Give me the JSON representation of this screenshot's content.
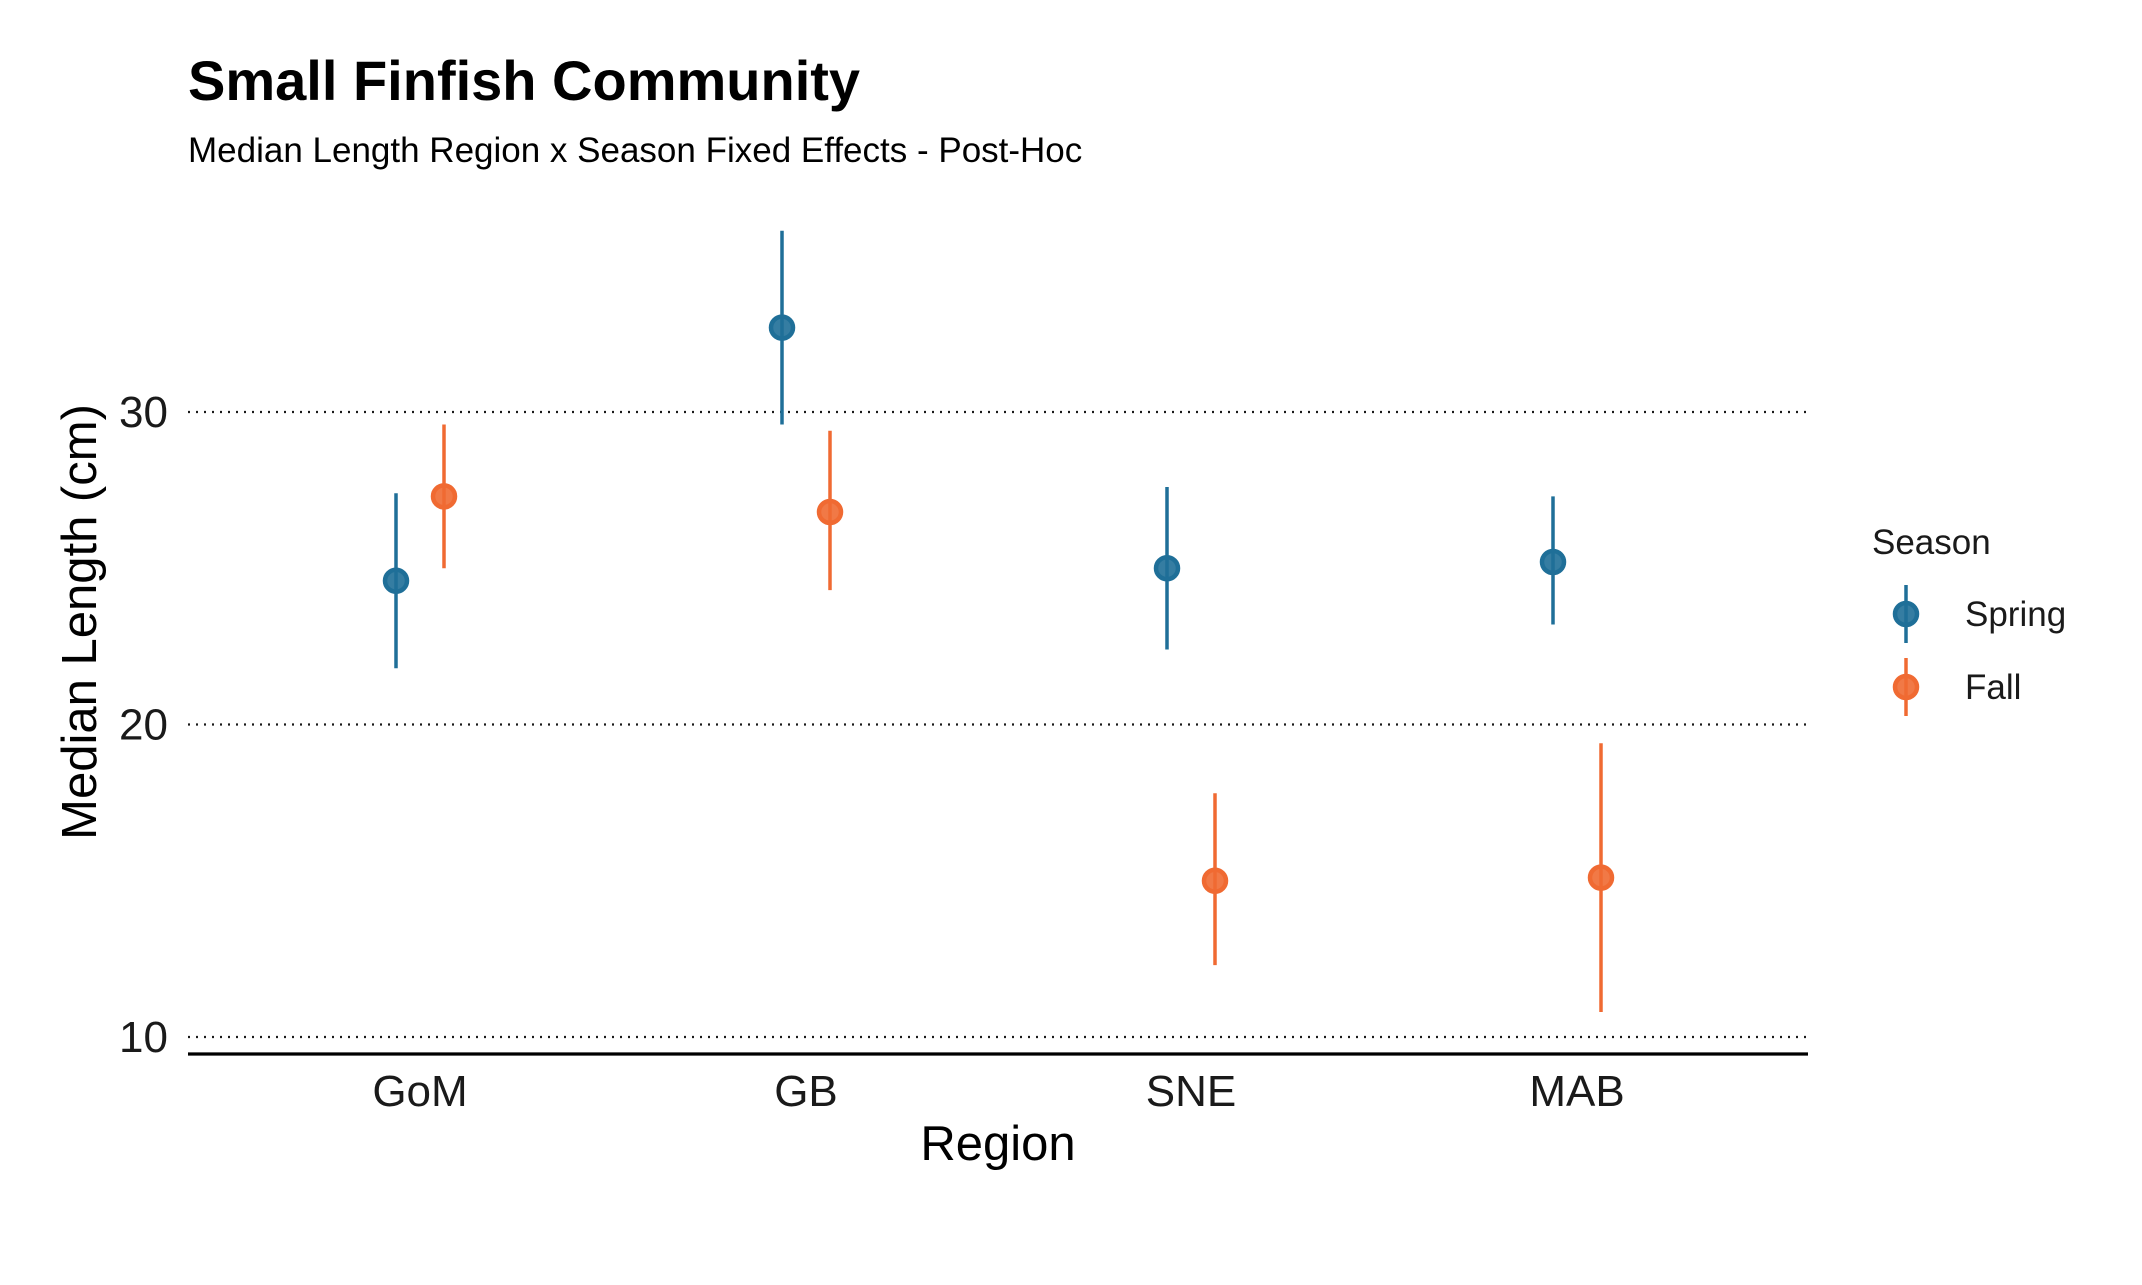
{
  "chart_data": {
    "type": "scatter",
    "title": "Small Finfish Community",
    "subtitle": "Median Length Region x Season Fixed Effects - Post-Hoc",
    "xlabel": "Region",
    "ylabel": "Median Length (cm)",
    "categories": [
      "GoM",
      "GB",
      "SNE",
      "MAB"
    ],
    "yticks": [
      10,
      20,
      30
    ],
    "ylim": [
      9.5,
      35.8
    ],
    "grid": "horizontal dotted",
    "legend": {
      "title": "Season",
      "position": "right"
    },
    "series": [
      {
        "name": "Spring",
        "color": "#1f6f98",
        "values": [
          24.6,
          32.7,
          25.0,
          25.2
        ],
        "lower": [
          21.8,
          29.6,
          22.4,
          23.2
        ],
        "upper": [
          27.4,
          35.8,
          27.6,
          27.3
        ]
      },
      {
        "name": "Fall",
        "color": "#f06a32",
        "values": [
          27.3,
          26.8,
          15.0,
          15.1
        ],
        "lower": [
          25.0,
          24.3,
          12.3,
          10.8
        ],
        "upper": [
          29.6,
          29.4,
          17.8,
          19.4
        ]
      }
    ]
  }
}
